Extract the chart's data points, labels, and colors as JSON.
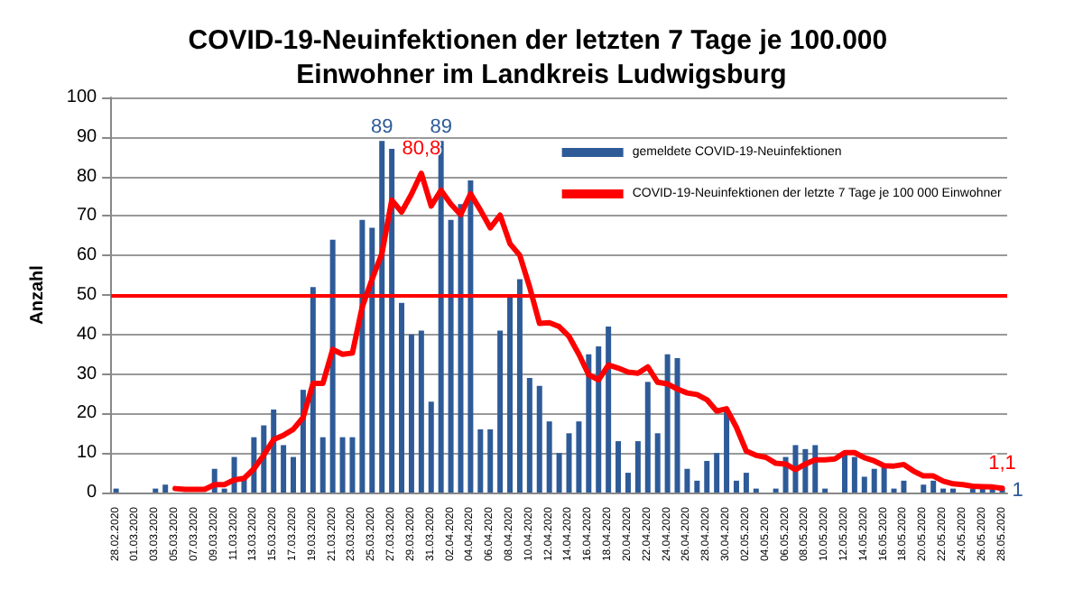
{
  "chart_data": {
    "type": "bar",
    "title": "COVID-19-Neuinfektionen der letzten 7 Tage je 100.000 Einwohner im Landkreis Ludwigsburg",
    "ylabel": "Anzahl",
    "categories": [
      "28.02.2020",
      null,
      "01.03.2020",
      null,
      "03.03.2020",
      null,
      "05.03.2020",
      null,
      "07.03.2020",
      null,
      "09.03.2020",
      null,
      "11.03.2020",
      null,
      "13.03.2020",
      null,
      "15.03.2020",
      null,
      "17.03.2020",
      null,
      "19.03.2020",
      null,
      "21.03.2020",
      null,
      "23.03.2020",
      null,
      "25.03.2020",
      null,
      "27.03.2020",
      null,
      "29.03.2020",
      null,
      "31.03.2020",
      null,
      "02.04.2020",
      null,
      "04.04.2020",
      null,
      "06.04.2020",
      null,
      "08.04.2020",
      null,
      "10.04.2020",
      null,
      "12.04.2020",
      null,
      "14.04.2020",
      null,
      "16.04.2020",
      null,
      "18.04.2020",
      null,
      "20.04.2020",
      null,
      "22.04.2020",
      null,
      "24.04.2020",
      null,
      "26.04.2020",
      null,
      "28.04.2020",
      null,
      "30.04.2020",
      null,
      "02.05.2020",
      null,
      "04.05.2020",
      null,
      "06.05.2020",
      null,
      "08.05.2020",
      null,
      "10.05.2020",
      null,
      "12.05.2020",
      null,
      "14.05.2020",
      null,
      "16.05.2020",
      null,
      "18.05.2020",
      null,
      "20.05.2020",
      null,
      "22.05.2020",
      null,
      "24.05.2020",
      null,
      "26.05.2020",
      null,
      "28.05.2020"
    ],
    "series": [
      {
        "name": "gemeldete COVID-19-Neuinfektionen",
        "color": "#2e5b98",
        "values": [
          1,
          0,
          0,
          0,
          1,
          2,
          0,
          0,
          0,
          0,
          6,
          1,
          9,
          4,
          14,
          17,
          21,
          12,
          9,
          26,
          52,
          14,
          64,
          14,
          14,
          69,
          67,
          89,
          87,
          48,
          40,
          41,
          23,
          89,
          69,
          73,
          79,
          16,
          16,
          41,
          50,
          54,
          29,
          27,
          18,
          10,
          15,
          18,
          35,
          37,
          42,
          13,
          5,
          13,
          28,
          15,
          35,
          34,
          6,
          3,
          8,
          10,
          21,
          3,
          5,
          1,
          0,
          1,
          9,
          12,
          11,
          12,
          1,
          0,
          10,
          9,
          4,
          6,
          7,
          1,
          3,
          0,
          2,
          3,
          1,
          1,
          0,
          1,
          1,
          1,
          1
        ],
        "value_labels": [
          null,
          null,
          null,
          null,
          null,
          null,
          null,
          null,
          null,
          null,
          null,
          null,
          null,
          null,
          null,
          null,
          null,
          null,
          null,
          null,
          null,
          null,
          null,
          null,
          null,
          null,
          null,
          "89",
          null,
          null,
          null,
          null,
          null,
          "89",
          null,
          null,
          null,
          null,
          null,
          null,
          null,
          null,
          null,
          null,
          null,
          null,
          null,
          null,
          null,
          null,
          null,
          null,
          null,
          null,
          null,
          null,
          null,
          null,
          null,
          null,
          null,
          null,
          null,
          null,
          null,
          null,
          null,
          null,
          null,
          null,
          null,
          null,
          null,
          null,
          null,
          null,
          null,
          null,
          null,
          null,
          null,
          null,
          null,
          null,
          null,
          null,
          null,
          null,
          null,
          null,
          "1"
        ]
      },
      {
        "name": "COVID-19-Neuinfektionen der letzte 7 Tage je 100 000 Einwohner",
        "type": "line",
        "color": "#ff0000",
        "values": [
          null,
          null,
          null,
          null,
          null,
          null,
          1,
          0.8,
          0.8,
          0.8,
          2,
          2,
          3.2,
          3.6,
          6,
          9.5,
          13.4,
          14.5,
          16,
          19,
          27.6,
          27.6,
          36.2,
          35,
          35.3,
          47,
          54,
          60.5,
          74,
          71,
          75.5,
          80.8,
          72.5,
          76.5,
          73,
          70.3,
          75.6,
          71.5,
          67,
          70.2,
          63,
          60,
          52,
          42.8,
          43,
          42,
          39.5,
          35,
          29.8,
          28.5,
          32.3,
          31.5,
          30.5,
          30.2,
          31.8,
          27.9,
          27.5,
          26.2,
          25.2,
          24.8,
          23.5,
          20.6,
          21.2,
          16.5,
          10.5,
          9.4,
          8.9,
          7.4,
          7.2,
          5.8,
          7.2,
          8.3,
          8.3,
          8.5,
          10.1,
          10.1,
          8.8,
          8,
          6.8,
          6.7,
          7.1,
          5.4,
          4.2,
          4.2,
          2.9,
          2.2,
          2,
          1.6,
          1.5,
          1.4,
          1.1
        ],
        "value_labels": [
          null,
          null,
          null,
          null,
          null,
          null,
          null,
          null,
          null,
          null,
          null,
          null,
          null,
          null,
          null,
          null,
          null,
          null,
          null,
          null,
          null,
          null,
          null,
          null,
          null,
          null,
          null,
          null,
          null,
          null,
          null,
          "80,8",
          null,
          null,
          null,
          null,
          null,
          null,
          null,
          null,
          null,
          null,
          null,
          null,
          null,
          null,
          null,
          null,
          null,
          null,
          null,
          null,
          null,
          null,
          null,
          null,
          null,
          null,
          null,
          null,
          null,
          null,
          null,
          null,
          null,
          null,
          null,
          null,
          null,
          null,
          null,
          null,
          null,
          null,
          null,
          null,
          null,
          null,
          null,
          null,
          null,
          null,
          null,
          null,
          null,
          null,
          null,
          null,
          null,
          null,
          "1,1"
        ]
      }
    ],
    "ylim": [
      0,
      100
    ],
    "yticks": [
      0,
      10,
      20,
      30,
      40,
      50,
      60,
      70,
      80,
      90,
      100
    ],
    "ref_lines": [
      {
        "axis": "y",
        "value": 50,
        "color": "#ff0000"
      }
    ],
    "grid": "y",
    "legend": "top right",
    "marker": "none",
    "line_style": "solid"
  }
}
